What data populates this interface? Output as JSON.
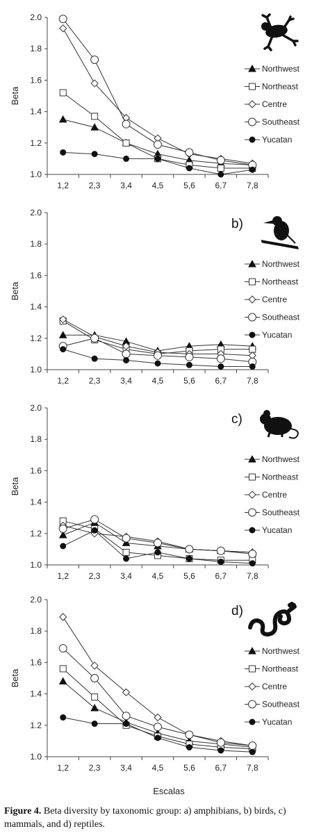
{
  "caption": {
    "label": "Figure 4.",
    "text": " Beta diversity by taxonomic group: a) amphibians, b) birds, c) mammals, and d) reptiles."
  },
  "x_axis_title": "Escalas",
  "colors": {
    "line": "#333333",
    "filled": "#111111",
    "open_fill": "#ffffff"
  },
  "legend_markers": {
    "Northwest": "filled-triangle",
    "Northeast": "open-square",
    "Centre": "open-diamond",
    "Southeast": "open-circle",
    "Yucatan": "filled-circle"
  },
  "chart_data": [
    {
      "type": "line",
      "panel_label": "",
      "icon": "frog-icon",
      "ylabel": "Beta",
      "ylim": [
        1.0,
        2.0
      ],
      "yticks": [
        "1.0",
        "1.2",
        "1.4",
        "1.6",
        "1.8",
        "2.0"
      ],
      "categories": [
        "1,2",
        "2,3",
        "3,4",
        "4,5",
        "5,6",
        "6,7",
        "7,8"
      ],
      "legend": "right",
      "series": [
        {
          "name": "Northwest",
          "values": [
            1.35,
            1.3,
            1.2,
            1.13,
            1.09,
            1.07,
            1.06
          ]
        },
        {
          "name": "Northeast",
          "values": [
            1.52,
            1.37,
            1.2,
            1.1,
            1.06,
            1.04,
            1.04
          ]
        },
        {
          "name": "Centre",
          "values": [
            1.93,
            1.58,
            1.36,
            1.23,
            1.13,
            1.1,
            1.07
          ]
        },
        {
          "name": "Southeast",
          "values": [
            1.99,
            1.73,
            1.32,
            1.19,
            1.14,
            1.09,
            1.06
          ]
        },
        {
          "name": "Yucatan",
          "values": [
            1.14,
            1.13,
            1.1,
            1.1,
            1.04,
            1.0,
            1.03
          ]
        }
      ]
    },
    {
      "type": "line",
      "panel_label": "b)",
      "icon": "bird-icon",
      "ylabel": "Beta",
      "ylim": [
        1.0,
        2.0
      ],
      "yticks": [
        "1.0",
        "1.2",
        "1.4",
        "1.6",
        "1.8",
        "2.0"
      ],
      "categories": [
        "1,2",
        "2,3",
        "3,4",
        "4,5",
        "5,6",
        "6,7",
        "7,8"
      ],
      "legend": "right",
      "series": [
        {
          "name": "Northwest",
          "values": [
            1.22,
            1.22,
            1.18,
            1.12,
            1.15,
            1.16,
            1.15
          ]
        },
        {
          "name": "Northeast",
          "values": [
            1.31,
            1.19,
            1.13,
            1.1,
            1.12,
            1.13,
            1.13
          ]
        },
        {
          "name": "Centre",
          "values": [
            1.32,
            1.21,
            1.15,
            1.11,
            1.1,
            1.1,
            1.09
          ]
        },
        {
          "name": "Southeast",
          "values": [
            1.15,
            1.2,
            1.1,
            1.09,
            1.08,
            1.07,
            1.05
          ]
        },
        {
          "name": "Yucatan",
          "values": [
            1.13,
            1.07,
            1.06,
            1.04,
            1.03,
            1.02,
            1.02
          ]
        }
      ]
    },
    {
      "type": "line",
      "panel_label": "c)",
      "icon": "mouse-icon",
      "ylabel": "Beta",
      "ylim": [
        1.0,
        2.0
      ],
      "yticks": [
        "1.0",
        "1.2",
        "1.4",
        "1.6",
        "1.8",
        "2.0"
      ],
      "categories": [
        "1,2",
        "2,3",
        "3,4",
        "4,5",
        "5,6",
        "6,7",
        "7,8"
      ],
      "legend": "right",
      "series": [
        {
          "name": "Northwest",
          "values": [
            1.19,
            1.27,
            1.14,
            1.12,
            1.1,
            1.09,
            1.08
          ]
        },
        {
          "name": "Northeast",
          "values": [
            1.28,
            1.23,
            1.08,
            1.06,
            1.04,
            1.03,
            1.03
          ]
        },
        {
          "name": "Centre",
          "values": [
            1.25,
            1.2,
            1.18,
            1.15,
            1.1,
            1.09,
            1.08
          ]
        },
        {
          "name": "Southeast",
          "values": [
            1.23,
            1.29,
            1.17,
            1.14,
            1.1,
            1.09,
            1.07
          ]
        },
        {
          "name": "Yucatan",
          "values": [
            1.12,
            1.22,
            1.04,
            1.08,
            1.04,
            1.02,
            1.01
          ]
        }
      ]
    },
    {
      "type": "line",
      "panel_label": "d)",
      "icon": "snake-icon",
      "ylabel": "Beta",
      "ylim": [
        1.0,
        2.0
      ],
      "yticks": [
        "1.0",
        "1.2",
        "1.4",
        "1.6",
        "1.8",
        "2.0"
      ],
      "categories": [
        "1,2",
        "2,3",
        "3,4",
        "4,5",
        "5,6",
        "6,7",
        "7,8"
      ],
      "legend": "right",
      "series": [
        {
          "name": "Northwest",
          "values": [
            1.48,
            1.31,
            1.22,
            1.15,
            1.1,
            1.08,
            1.06
          ]
        },
        {
          "name": "Northeast",
          "values": [
            1.56,
            1.38,
            1.2,
            1.13,
            1.08,
            1.06,
            1.05
          ]
        },
        {
          "name": "Centre",
          "values": [
            1.89,
            1.58,
            1.41,
            1.25,
            1.14,
            1.1,
            1.07
          ]
        },
        {
          "name": "Southeast",
          "values": [
            1.69,
            1.5,
            1.26,
            1.19,
            1.14,
            1.09,
            1.07
          ]
        },
        {
          "name": "Yucatan",
          "values": [
            1.25,
            1.21,
            1.21,
            1.12,
            1.06,
            1.04,
            1.03
          ]
        }
      ]
    }
  ]
}
